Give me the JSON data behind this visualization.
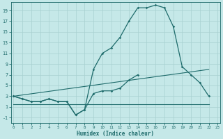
{
  "line_main": [
    [
      0,
      3
    ],
    [
      1,
      2.5
    ],
    [
      2,
      2
    ],
    [
      3,
      2
    ],
    [
      4,
      2.5
    ],
    [
      5,
      2
    ],
    [
      6,
      2
    ],
    [
      7,
      -0.5
    ],
    [
      8,
      0.5
    ],
    [
      9,
      8
    ],
    [
      10,
      11
    ],
    [
      11,
      12
    ],
    [
      12,
      14
    ],
    [
      13,
      17
    ],
    [
      14,
      19.5
    ],
    [
      15,
      19.5
    ],
    [
      16,
      20
    ],
    [
      17,
      19.5
    ],
    [
      18,
      16
    ],
    [
      19,
      8.5
    ],
    [
      20,
      7
    ],
    [
      21,
      5.5
    ],
    [
      22,
      3
    ]
  ],
  "line_low": [
    [
      0,
      3
    ],
    [
      1,
      2.5
    ],
    [
      2,
      2
    ],
    [
      3,
      2
    ],
    [
      4,
      2.5
    ],
    [
      5,
      2
    ],
    [
      6,
      2
    ],
    [
      7,
      -0.5
    ],
    [
      8,
      0.5
    ],
    [
      9,
      3.5
    ],
    [
      10,
      4
    ],
    [
      11,
      4
    ],
    [
      12,
      4.5
    ],
    [
      13,
      6
    ],
    [
      14,
      7
    ]
  ],
  "line_flat": [
    [
      0,
      1.5
    ],
    [
      22,
      1.5
    ]
  ],
  "line_diag": [
    [
      0,
      3
    ],
    [
      22,
      8
    ]
  ],
  "bg_color": "#c5e8e8",
  "line_color": "#1e6b6b",
  "grid_color": "#a8d0d0",
  "xlabel": "Humidex (Indice chaleur)",
  "yticks": [
    -1,
    1,
    3,
    5,
    7,
    9,
    11,
    13,
    15,
    17,
    19
  ],
  "xticks": [
    0,
    1,
    2,
    3,
    4,
    5,
    6,
    7,
    8,
    9,
    10,
    11,
    12,
    13,
    14,
    15,
    16,
    17,
    18,
    19,
    20,
    21,
    22,
    23
  ],
  "ylim": [
    -2.0,
    20.5
  ],
  "xlim": [
    -0.3,
    23.3
  ]
}
